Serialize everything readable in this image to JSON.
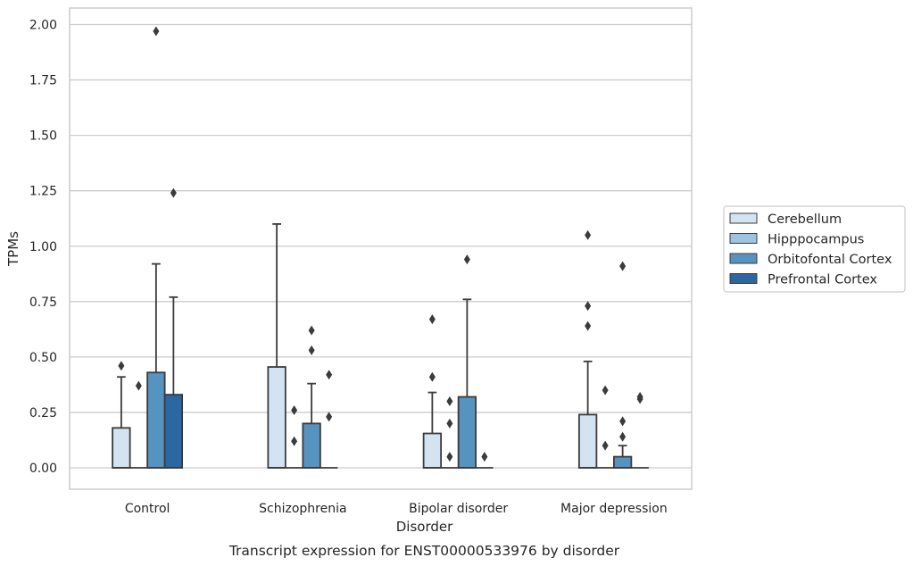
{
  "caption": "Transcript expression for ENST00000533976 by disorder",
  "chart_data": {
    "type": "box",
    "xlabel": "Disorder",
    "ylabel": "TPMs",
    "ylim": [
      -0.1,
      2.07
    ],
    "yticks": [
      "0.00",
      "0.25",
      "0.50",
      "0.75",
      "1.00",
      "1.25",
      "1.50",
      "1.75",
      "2.00"
    ],
    "ytick_values": [
      0,
      0.25,
      0.5,
      0.75,
      1.0,
      1.25,
      1.5,
      1.75,
      2.0
    ],
    "grid": "horizontal",
    "legend_position": "right",
    "categories": [
      "Control",
      "Schizophrenia",
      "Bipolar disorder",
      "Major depression"
    ],
    "series": [
      {
        "name": "Cerebellum",
        "color": "#d3e3f2",
        "boxes": [
          {
            "q1": 0,
            "median": 0,
            "q3": 0.18,
            "whisker_low": 0,
            "whisker_high": 0.41,
            "outliers": [
              0.46
            ]
          },
          {
            "q1": 0,
            "median": 0,
            "q3": 0.455,
            "whisker_low": 0,
            "whisker_high": 1.1,
            "outliers": []
          },
          {
            "q1": 0,
            "median": 0,
            "q3": 0.155,
            "whisker_low": 0,
            "whisker_high": 0.34,
            "outliers": [
              0.41,
              0.67
            ]
          },
          {
            "q1": 0,
            "median": 0,
            "q3": 0.24,
            "whisker_low": 0,
            "whisker_high": 0.48,
            "outliers": [
              0.64,
              0.73,
              1.05
            ]
          }
        ]
      },
      {
        "name": "Hipppocampus",
        "color": "#9dc3e0",
        "boxes": [
          {
            "q1": 0,
            "median": 0,
            "q3": 0,
            "whisker_low": 0,
            "whisker_high": 0,
            "outliers": [
              0.37
            ]
          },
          {
            "q1": 0,
            "median": 0,
            "q3": 0,
            "whisker_low": 0,
            "whisker_high": 0,
            "outliers": [
              0.12,
              0.26
            ]
          },
          {
            "q1": 0,
            "median": 0,
            "q3": 0,
            "whisker_low": 0,
            "whisker_high": 0,
            "outliers": [
              0.05,
              0.2,
              0.3
            ]
          },
          {
            "q1": 0,
            "median": 0,
            "q3": 0,
            "whisker_low": 0,
            "whisker_high": 0,
            "outliers": [
              0.1,
              0.35
            ]
          }
        ]
      },
      {
        "name": "Orbitofontal Cortex",
        "color": "#5693c0",
        "boxes": [
          {
            "q1": 0,
            "median": 0,
            "q3": 0.43,
            "whisker_low": 0,
            "whisker_high": 0.92,
            "outliers": [
              1.97
            ]
          },
          {
            "q1": 0,
            "median": 0,
            "q3": 0.2,
            "whisker_low": 0,
            "whisker_high": 0.38,
            "outliers": [
              0.53,
              0.62
            ]
          },
          {
            "q1": 0,
            "median": 0,
            "q3": 0.32,
            "whisker_low": 0,
            "whisker_high": 0.76,
            "outliers": [
              0.94
            ]
          },
          {
            "q1": 0,
            "median": 0,
            "q3": 0.05,
            "whisker_low": 0,
            "whisker_high": 0.1,
            "outliers": [
              0.14,
              0.21,
              0.91
            ]
          }
        ]
      },
      {
        "name": "Prefrontal Cortex",
        "color": "#2b67a2",
        "boxes": [
          {
            "q1": 0,
            "median": 0,
            "q3": 0.33,
            "whisker_low": 0,
            "whisker_high": 0.77,
            "outliers": [
              1.24
            ]
          },
          {
            "q1": 0,
            "median": 0,
            "q3": 0,
            "whisker_low": 0,
            "whisker_high": 0,
            "outliers": [
              0.23,
              0.42
            ]
          },
          {
            "q1": 0,
            "median": 0,
            "q3": 0,
            "whisker_low": 0,
            "whisker_high": 0,
            "outliers": [
              0.05
            ]
          },
          {
            "q1": 0,
            "median": 0,
            "q3": 0,
            "whisker_low": 0,
            "whisker_high": 0,
            "outliers": [
              0.31,
              0.32
            ]
          }
        ]
      }
    ],
    "colors": {
      "grid": "#cccccc",
      "frame": "#cccccc",
      "box_edge": "#3b3b3b",
      "outlier": "#3b3b3b"
    }
  }
}
